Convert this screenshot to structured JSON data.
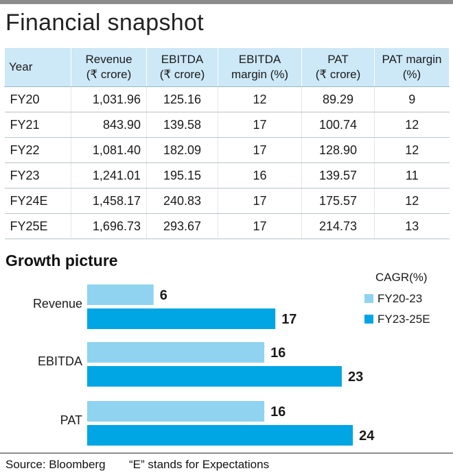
{
  "title": "Financial snapshot",
  "table": {
    "headers": [
      [
        "Year"
      ],
      [
        "Revenue",
        "(₹ crore)"
      ],
      [
        "EBITDA",
        "(₹ crore)"
      ],
      [
        "EBITDA",
        "margin (%)"
      ],
      [
        "PAT",
        "(₹ crore)"
      ],
      [
        "PAT margin",
        "(%)"
      ]
    ],
    "rows": [
      [
        "FY20",
        "1,031.96",
        "125.16",
        "12",
        "89.29",
        "9"
      ],
      [
        "FY21",
        "843.90",
        "139.58",
        "17",
        "100.74",
        "12"
      ],
      [
        "FY22",
        "1,081.40",
        "182.09",
        "17",
        "128.90",
        "12"
      ],
      [
        "FY23",
        "1,241.01",
        "195.15",
        "16",
        "139.57",
        "11"
      ],
      [
        "FY24E",
        "1,458.17",
        "240.83",
        "17",
        "175.57",
        "12"
      ],
      [
        "FY25E",
        "1,696.73",
        "293.67",
        "17",
        "214.73",
        "13"
      ]
    ]
  },
  "chart_data": {
    "type": "bar",
    "orientation": "horizontal",
    "title": "Growth picture",
    "categories": [
      "Revenue",
      "EBITDA",
      "PAT"
    ],
    "legend_title": "CAGR(%)",
    "legend_position": "top-right",
    "series": [
      {
        "name": "FY20-23",
        "color": "#8fd3f0",
        "values": [
          6,
          16,
          16
        ]
      },
      {
        "name": "FY23-25E",
        "color": "#00a5e3",
        "values": [
          17,
          23,
          24
        ]
      }
    ],
    "xlim": [
      0,
      24.8
    ],
    "grid": false
  },
  "footer": {
    "source": "Source: Bloomberg",
    "note": "“E” stands for Expectations"
  }
}
